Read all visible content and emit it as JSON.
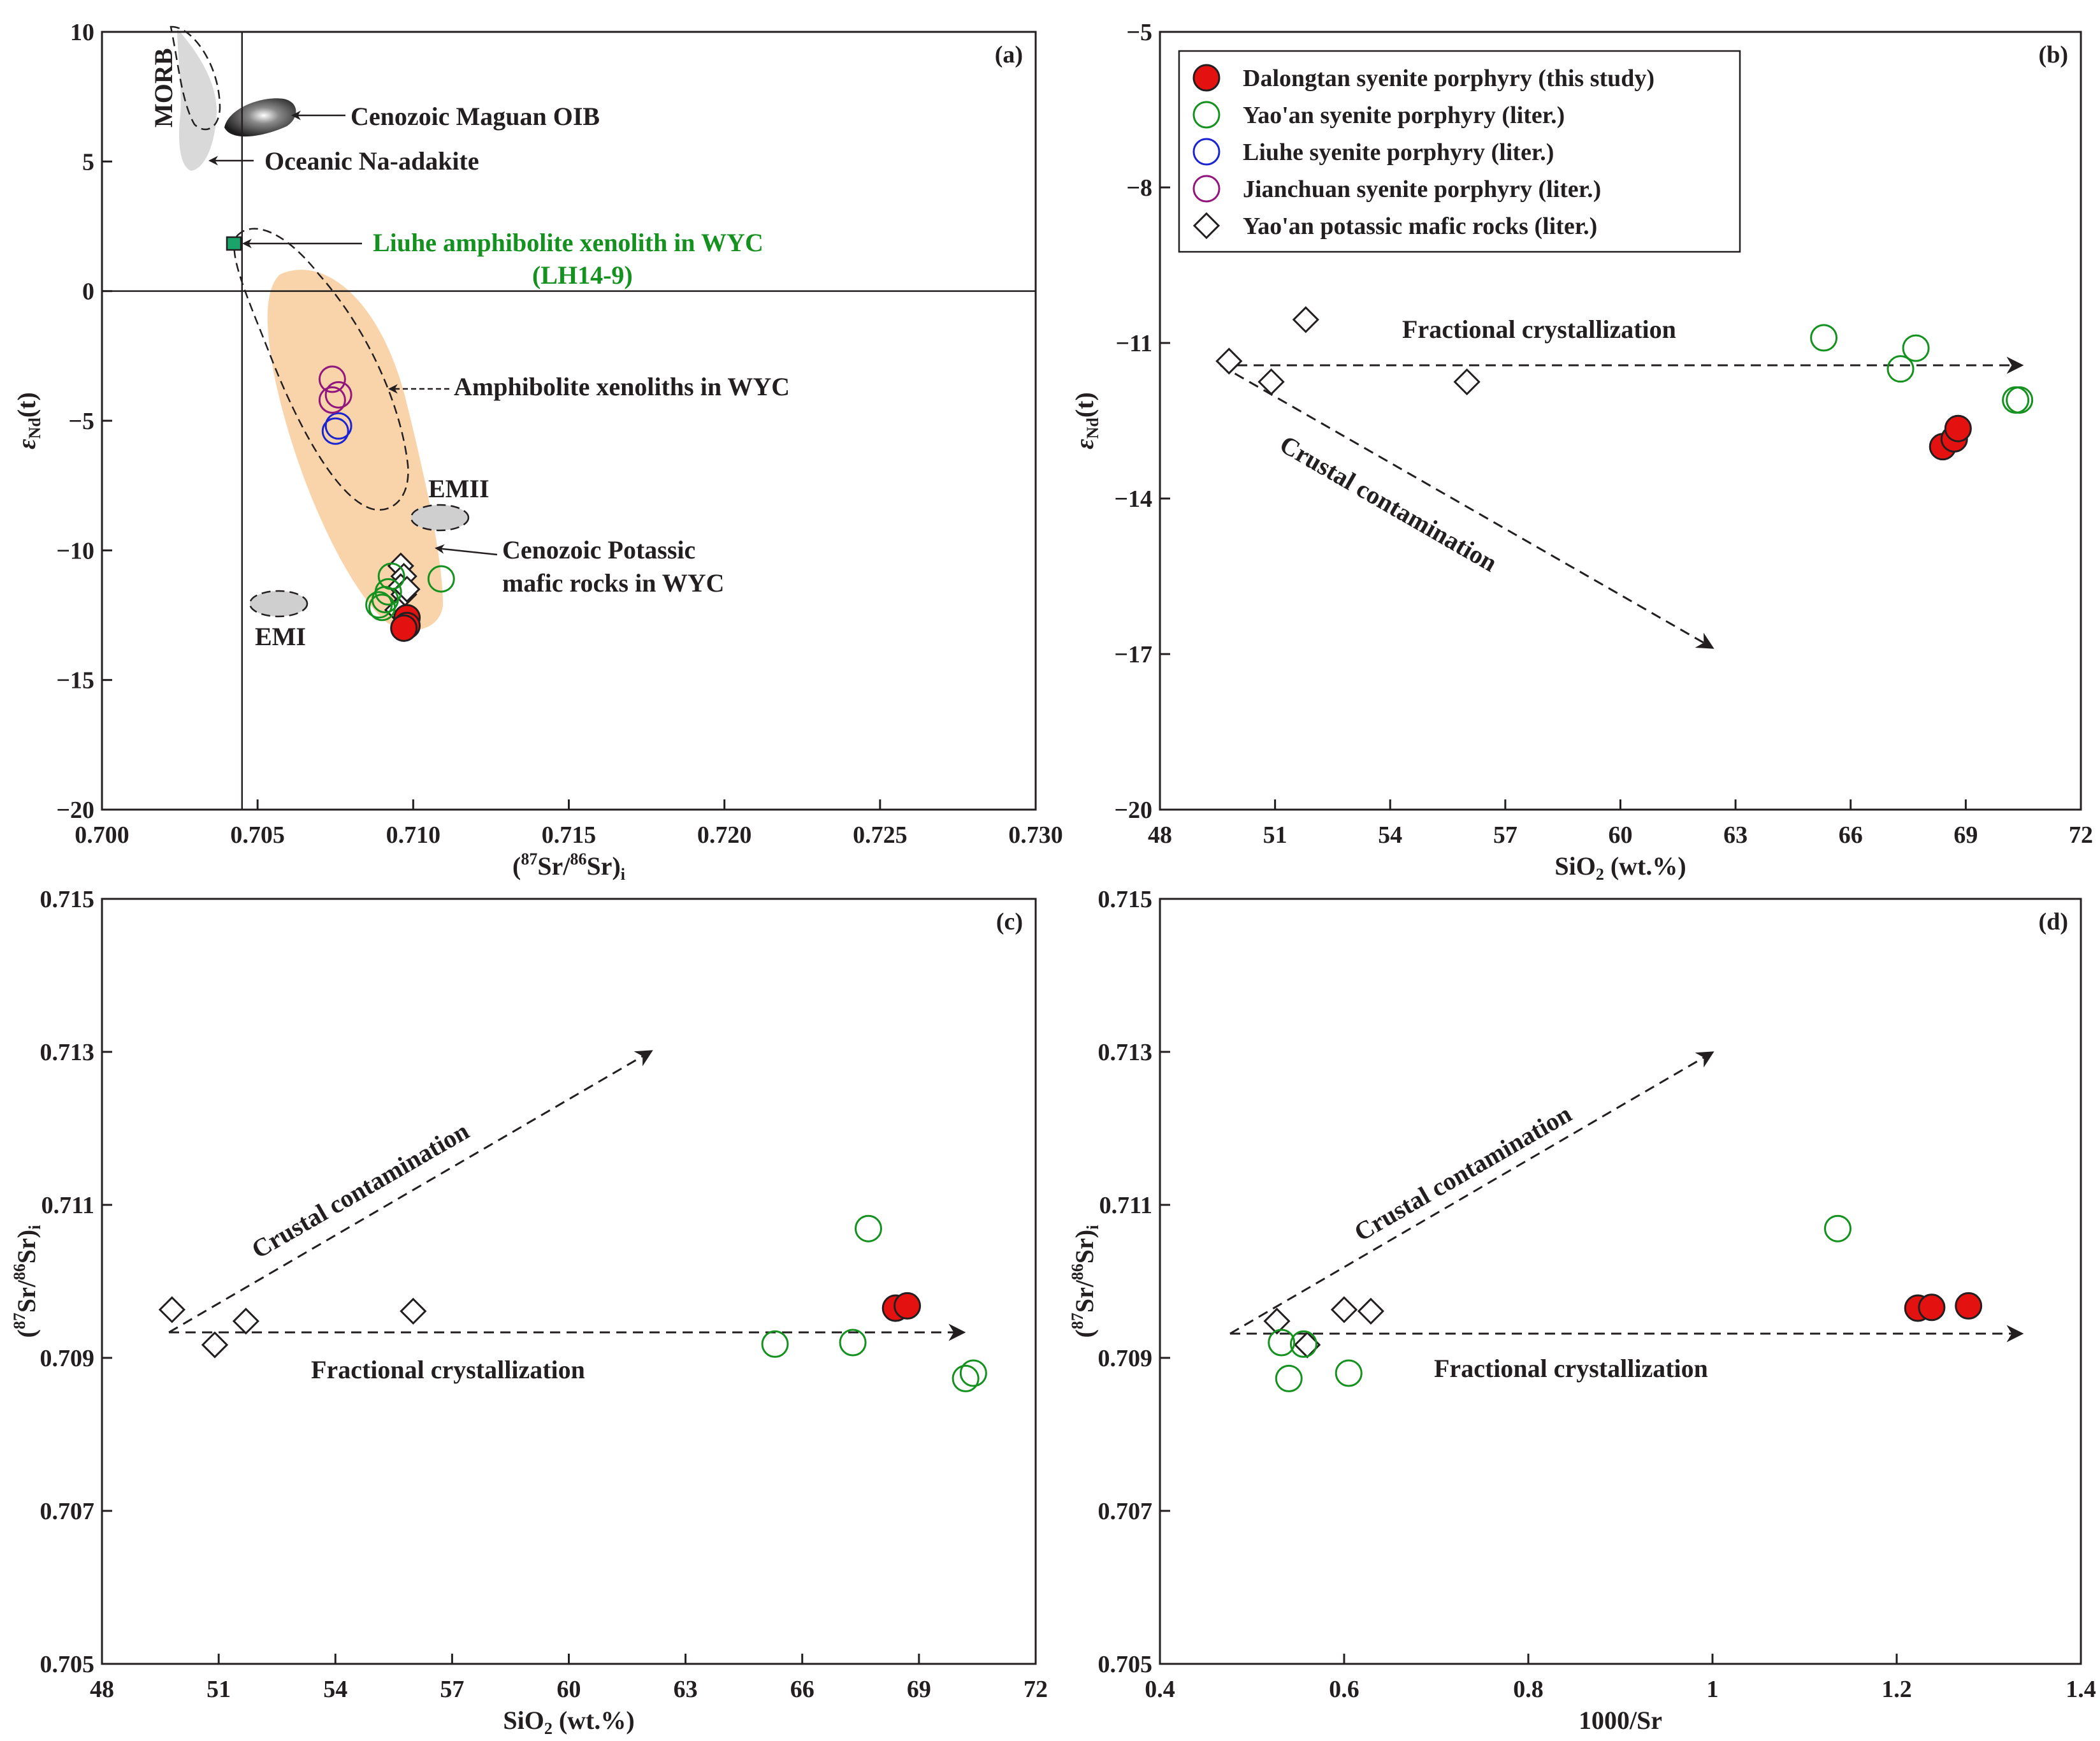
{
  "colors": {
    "dalongtan": "#e3110f",
    "yaoan": "#14911f",
    "liuhe": "#1a24d1",
    "jianchuan": "#91177d",
    "mafic": "#231f20",
    "field": "#f9d3aa",
    "xenolith": "#1aa36b"
  },
  "legend": {
    "items": [
      {
        "label": "Dalongtan syenite porphyry (this study)",
        "marker": "filled-circle",
        "color": "#e3110f"
      },
      {
        "label": "Yao'an syenite porphyry (liter.)",
        "marker": "open-circle",
        "color": "#14911f"
      },
      {
        "label": "Liuhe syenite porphyry (liter.)",
        "marker": "open-circle",
        "color": "#1a24d1"
      },
      {
        "label": "Jianchuan syenite porphyry (liter.)",
        "marker": "open-circle",
        "color": "#91177d"
      },
      {
        "label": "Yao'an potassic mafic rocks (liter.)",
        "marker": "open-diamond",
        "color": "#231f20"
      }
    ]
  },
  "chart_data": [
    {
      "id": "a",
      "panel_label": "(a)",
      "type": "scatter",
      "xlabel": "(87Sr/86Sr)i",
      "ylabel": "εNd(t)",
      "xlim": [
        0.7,
        0.73
      ],
      "ylim": [
        -20,
        10
      ],
      "xticks": [
        "0.700",
        "0.705",
        "0.710",
        "0.715",
        "0.720",
        "0.725",
        "0.730"
      ],
      "yticks": [
        "10",
        "5",
        "0",
        "−5",
        "−10",
        "−15",
        "−20"
      ],
      "reference_lines": {
        "x": 0.7045,
        "y": 0
      },
      "annotations": {
        "morb": "MORB",
        "oib": "Cenozoic Maguan OIB",
        "adakite": "Oceanic Na-adakite",
        "liuhe_xenolith_line1": "Liuhe amphibolite xenolith in WYC",
        "liuhe_xenolith_line2": "(LH14-9)",
        "amphibolite": "Amphibolite xenoliths in WYC",
        "emii": "EMII",
        "emi": "EMI",
        "potassic_line1": "Cenozoic Potassic",
        "potassic_line2": "mafic rocks in WYC"
      },
      "series": [
        {
          "name": "Dalongtan syenite porphyry (this study)",
          "x": [
            0.7098,
            0.7098,
            0.7097
          ],
          "y": [
            -12.6,
            -12.9,
            -13.0
          ]
        },
        {
          "name": "Yao'an syenite porphyry (liter.)",
          "x": [
            0.7091,
            0.7093,
            0.7109,
            0.7089,
            0.709,
            0.7092
          ],
          "y": [
            -11.9,
            -11.0,
            -11.1,
            -12.1,
            -12.2,
            -11.6
          ]
        },
        {
          "name": "Liuhe syenite porphyry (liter.)",
          "x": [
            0.7076,
            0.7075
          ],
          "y": [
            -5.2,
            -5.4
          ]
        },
        {
          "name": "Jianchuan syenite porphyry (liter.)",
          "x": [
            0.7074,
            0.7076,
            0.7074
          ],
          "y": [
            -3.4,
            -4.0,
            -4.2
          ]
        },
        {
          "name": "Yao'an potassic mafic rocks (liter.)",
          "x": [
            0.7096,
            0.7097,
            0.7096,
            0.7097,
            0.7098,
            0.7095
          ],
          "y": [
            -10.6,
            -11.0,
            -11.4,
            -11.7,
            -11.5,
            -12.3
          ]
        }
      ]
    },
    {
      "id": "b",
      "panel_label": "(b)",
      "type": "scatter",
      "xlabel": "SiO2 (wt.%)",
      "ylabel": "εNd(t)",
      "xlim": [
        48,
        72
      ],
      "ylim": [
        -20,
        -5
      ],
      "xticks": [
        "48",
        "51",
        "54",
        "57",
        "60",
        "63",
        "66",
        "69",
        "72"
      ],
      "yticks": [
        "−5",
        "−8",
        "−11",
        "−14",
        "−17",
        "−20"
      ],
      "annotations": {
        "fc": "Fractional crystallization",
        "cc": "Crustal contamination"
      },
      "series": [
        {
          "name": "Dalongtan syenite porphyry (this study)",
          "x": [
            68.4,
            68.7,
            68.8
          ],
          "y": [
            -13.0,
            -12.85,
            -12.65
          ]
        },
        {
          "name": "Yao'an syenite porphyry (liter.)",
          "x": [
            65.3,
            67.7,
            67.3,
            70.3,
            70.4
          ],
          "y": [
            -10.9,
            -11.1,
            -11.5,
            -12.1,
            -12.1
          ]
        },
        {
          "name": "Yao'an potassic mafic rocks (liter.)",
          "x": [
            49.8,
            51.8,
            50.9,
            56.0
          ],
          "y": [
            -11.35,
            -10.55,
            -11.75,
            -11.75
          ]
        }
      ]
    },
    {
      "id": "c",
      "panel_label": "(c)",
      "type": "scatter",
      "xlabel": "SiO2 (wt.%)",
      "ylabel": "(87Sr/86Sr)i",
      "xlim": [
        48,
        72
      ],
      "ylim": [
        0.705,
        0.715
      ],
      "xticks": [
        "48",
        "51",
        "54",
        "57",
        "60",
        "63",
        "66",
        "69",
        "72"
      ],
      "yticks": [
        "0.715",
        "0.713",
        "0.711",
        "0.709",
        "0.707",
        "0.705"
      ],
      "annotations": {
        "fc": "Fractional crystallization",
        "cc": "Crustal contamination"
      },
      "series": [
        {
          "name": "Dalongtan syenite porphyry (this study)",
          "x": [
            68.4,
            68.7
          ],
          "y": [
            0.70965,
            0.70968
          ]
        },
        {
          "name": "Yao'an syenite porphyry (liter.)",
          "x": [
            65.3,
            67.3,
            67.7,
            70.2,
            70.4
          ],
          "y": [
            0.70918,
            0.7092,
            0.71069,
            0.70873,
            0.7088
          ]
        },
        {
          "name": "Yao'an potassic mafic rocks (liter.)",
          "x": [
            49.8,
            50.9,
            51.7,
            56.0
          ],
          "y": [
            0.70963,
            0.70917,
            0.70948,
            0.70961
          ]
        }
      ]
    },
    {
      "id": "d",
      "panel_label": "(d)",
      "type": "scatter",
      "xlabel": "1000/Sr",
      "ylabel": "(87Sr/86Sr)i",
      "xlim": [
        0.4,
        1.4
      ],
      "ylim": [
        0.705,
        0.715
      ],
      "xticks": [
        "0.4",
        "0.6",
        "0.8",
        "1",
        "1.2",
        "1.4"
      ],
      "yticks": [
        "0.715",
        "0.713",
        "0.711",
        "0.709",
        "0.707",
        "0.705"
      ],
      "annotations": {
        "fc": "Fractional crystallization",
        "cc": "Crustal contamination"
      },
      "series": [
        {
          "name": "Dalongtan syenite porphyry (this study)",
          "x": [
            1.223,
            1.238,
            1.278
          ],
          "y": [
            0.70965,
            0.70966,
            0.70968
          ]
        },
        {
          "name": "Yao'an syenite porphyry (liter.)",
          "x": [
            1.136,
            0.532,
            0.54,
            0.556,
            0.605
          ],
          "y": [
            0.71069,
            0.7092,
            0.70873,
            0.70918,
            0.7088
          ]
        },
        {
          "name": "Yao'an potassic mafic rocks (liter.)",
          "x": [
            0.527,
            0.56,
            0.6,
            0.629
          ],
          "y": [
            0.70948,
            0.70917,
            0.70963,
            0.70961
          ]
        }
      ]
    }
  ]
}
